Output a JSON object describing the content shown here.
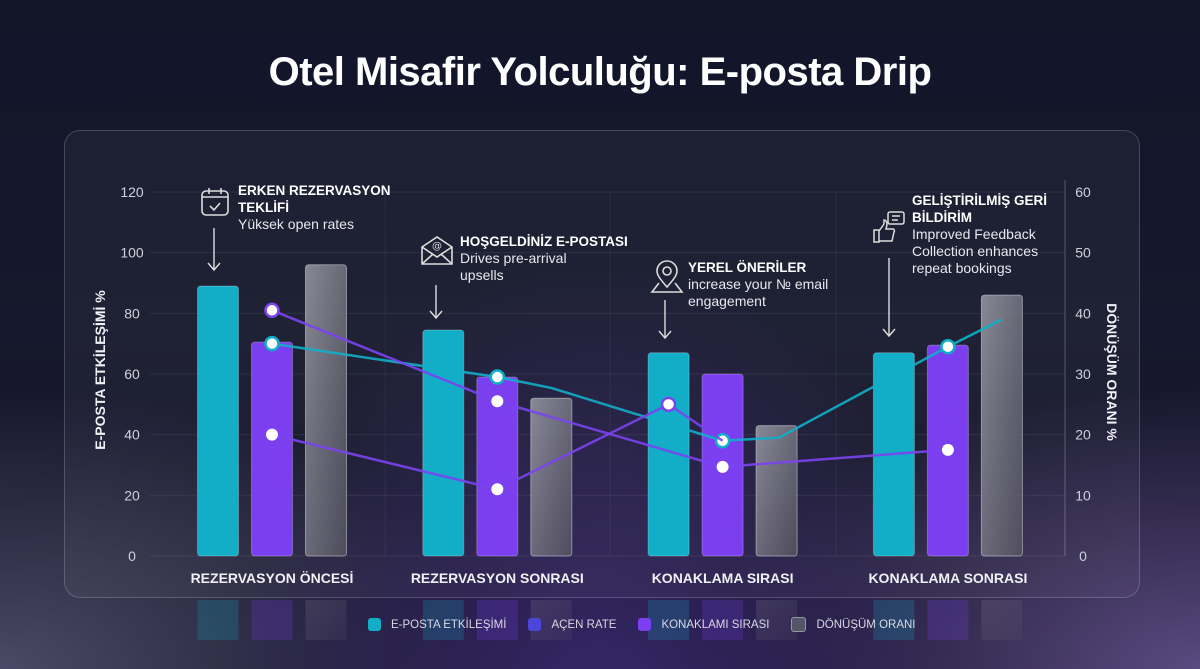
{
  "title": "Otel Misafir Yolculuğu: E-posta Drip",
  "colors": {
    "cyan": "#12aec8",
    "indigo": "#4b46d8",
    "purple": "#7b3ff0",
    "gray": "#6b6b78",
    "line_purple": "#7a44f0"
  },
  "chart_data": {
    "type": "bar",
    "categories": [
      "REZERVASYON ÖNCESİ",
      "REZERVASYON SONRASI",
      "KONAKLAMA SIRASI",
      "KONAKLAMA SONRASI"
    ],
    "ylabel": "E-POSTA ETKİLEŞİMİ %",
    "ylabel_right": "DÖNÜŞÜM ORANI %",
    "ylim": [
      0,
      120
    ],
    "ylim_right": [
      0,
      60
    ],
    "yticks": [
      "0",
      "20",
      "40",
      "60",
      "80",
      "100",
      "120"
    ],
    "yticks_right": [
      "0",
      "10",
      "20",
      "30",
      "40",
      "50",
      "60"
    ],
    "grid": true,
    "legend_position": "bottom",
    "legend": [
      "E-POSTA ETKİLEŞİMİ",
      "AÇEN RATE",
      "KONAKLAMI SIRASI",
      "DÖNÜŞÜM ORANI"
    ],
    "bar_series": [
      {
        "color": "cyan",
        "values": [
          89,
          74.5,
          67,
          67
        ]
      },
      {
        "color": "purple",
        "values": [
          70.5,
          59,
          60,
          69.5
        ]
      },
      {
        "color": "gray",
        "values": [
          96,
          52,
          43,
          86
        ]
      }
    ],
    "line_series": [
      {
        "color": "cyan",
        "axis": "right",
        "points": [
          [
            0,
            35
          ],
          [
            1,
            29.5
          ],
          [
            1.24,
            27.7
          ],
          [
            2,
            19
          ],
          [
            2.25,
            19.5
          ],
          [
            3,
            34.5
          ],
          [
            3.24,
            39
          ]
        ],
        "markers": [
          0,
          1,
          3,
          5
        ]
      },
      {
        "color": "purple",
        "axis": "right",
        "points": [
          [
            0,
            40.5
          ],
          [
            1,
            25.5
          ],
          [
            2,
            14.7
          ],
          [
            3,
            17.5
          ]
        ],
        "markers": [
          0,
          1,
          2,
          3
        ]
      },
      {
        "color": "purple",
        "axis": "right",
        "points": [
          [
            0,
            20
          ],
          [
            1,
            11
          ],
          [
            1.76,
            25
          ],
          [
            2,
            19
          ]
        ],
        "markers": [
          0,
          1,
          2
        ]
      }
    ]
  },
  "annotations": [
    {
      "icon": "calendar-check-icon",
      "title": "ERKEN REZERVASYON TEKLİFİ",
      "text": "Yüksek open rates"
    },
    {
      "icon": "email-open-icon",
      "title": "HOŞGELDİNİZ E-POSTASI",
      "text": "Drives pre-arrival upsells"
    },
    {
      "icon": "map-pin-icon",
      "title": "YEREL ÖNERİLER",
      "text": "increase your № email engagement"
    },
    {
      "icon": "thumbs-up-feedback-icon",
      "title": "GELİŞTİRİLMİŞ GERİ BİLDİRİM",
      "text": "Improved Feedback Collection enhances repeat bookings"
    }
  ]
}
